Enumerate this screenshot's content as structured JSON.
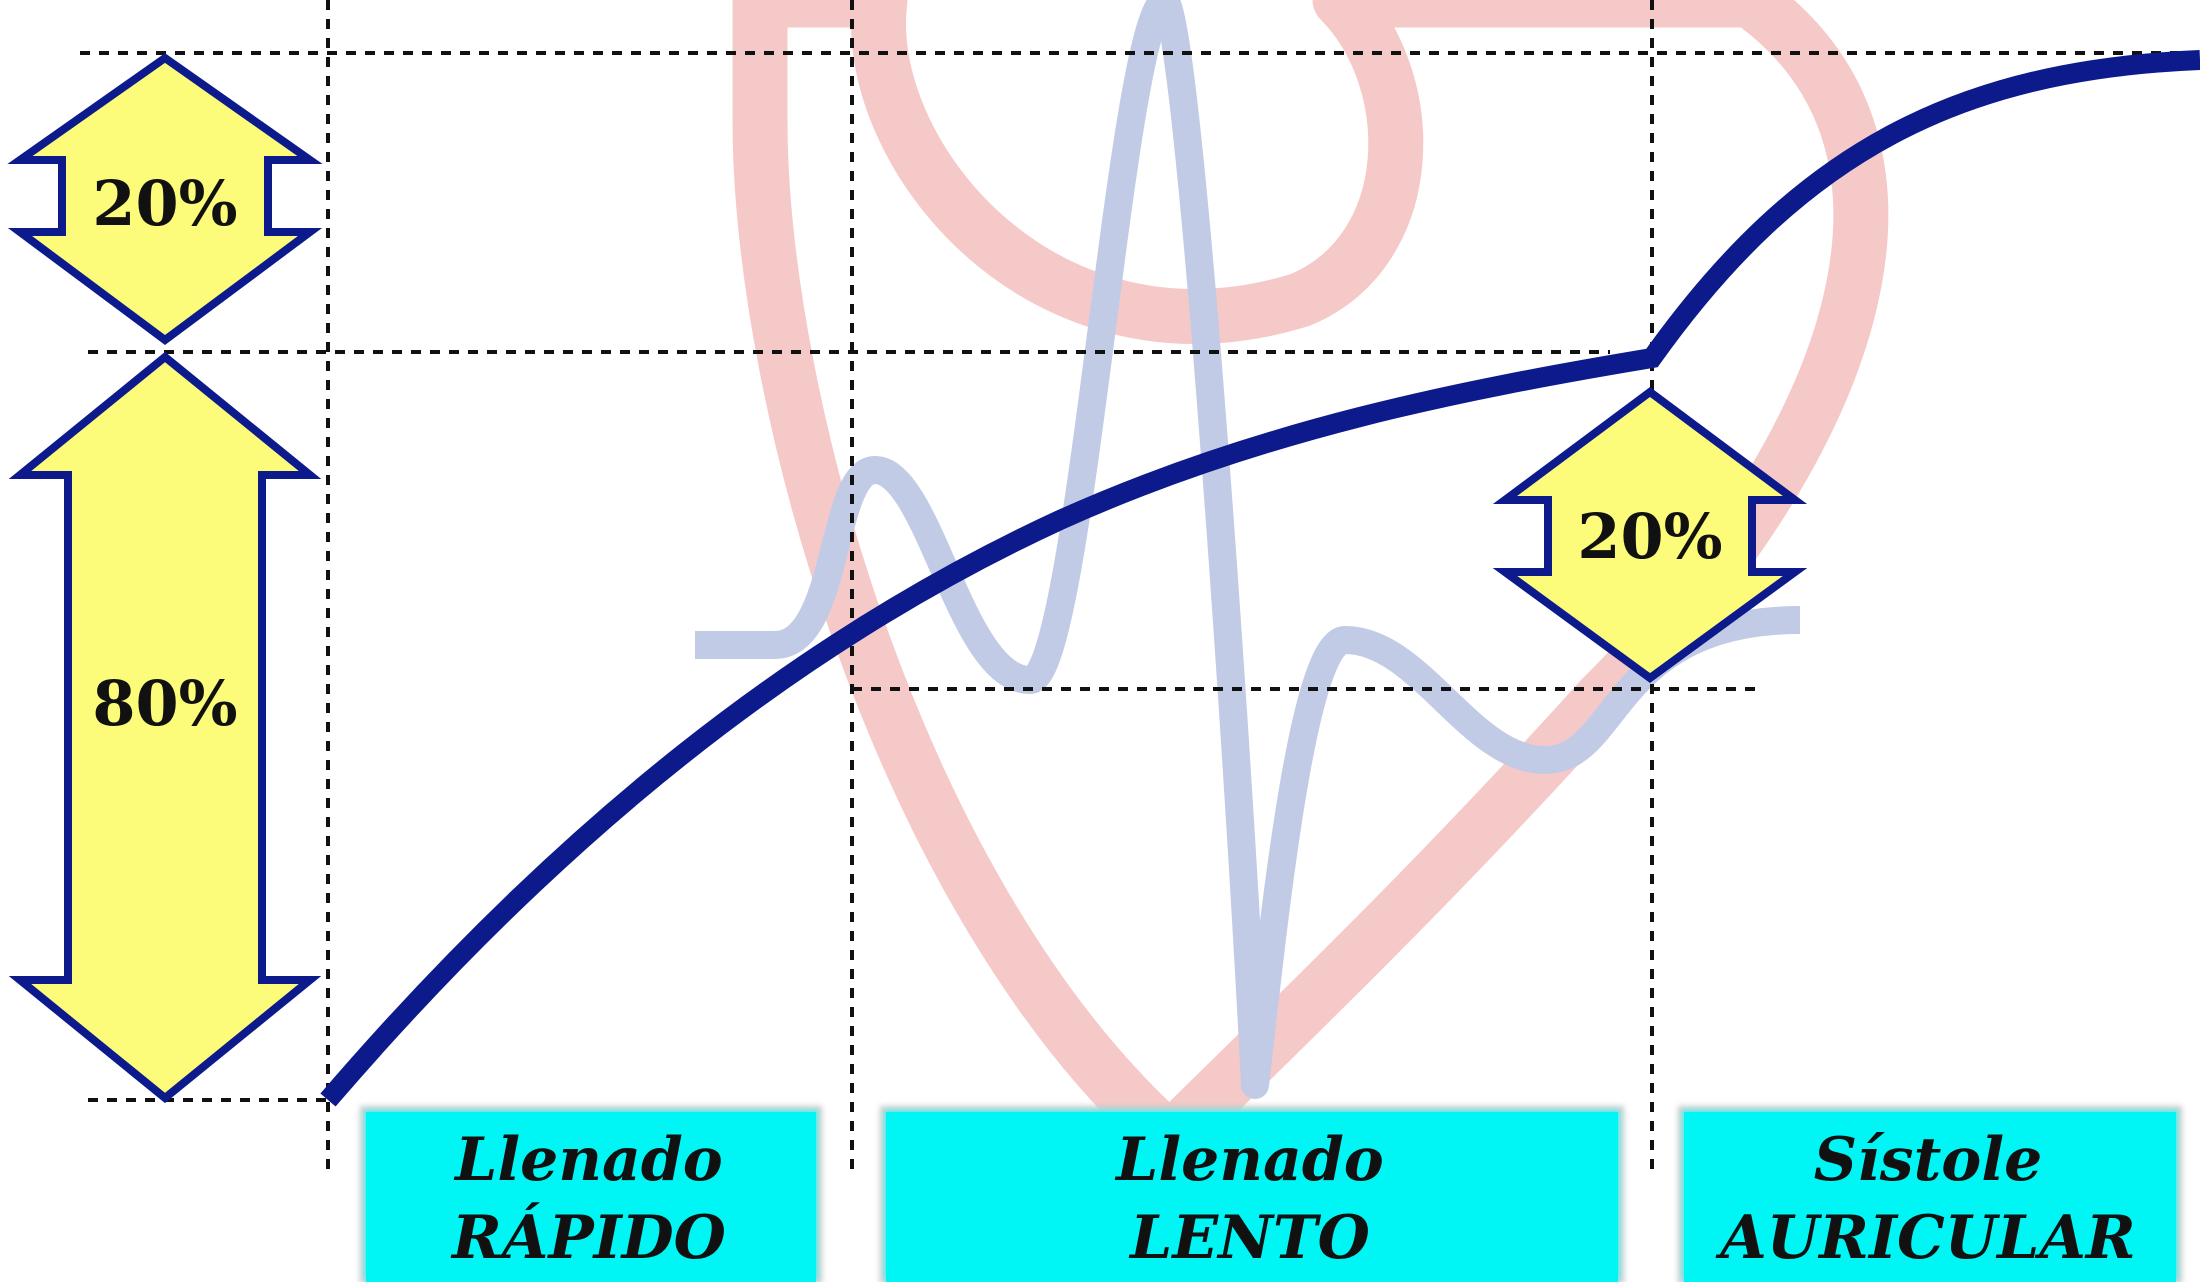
{
  "colors": {
    "background": "#ffffff",
    "curve": "#0d1a8c",
    "arrow_fill": "#fcfc7a",
    "arrow_stroke": "#0d1a8c",
    "phase_box": "#00f5f5",
    "watermark_heart": "#f4b8b8",
    "watermark_ecg": "#b3bfe0",
    "grid": "#111111"
  },
  "left_arrows": {
    "top": {
      "label": "20%"
    },
    "bottom": {
      "label": "80%"
    }
  },
  "atrial_arrow": {
    "label": "20%"
  },
  "phases": [
    {
      "line1": "Llenado",
      "line2": "RÁPIDO"
    },
    {
      "line1": "Llenado",
      "line2": "LENTO"
    },
    {
      "line1": "Sístole",
      "line2": "AURICULAR"
    }
  ],
  "icons": {
    "watermark": "heart-ecg-logo"
  }
}
